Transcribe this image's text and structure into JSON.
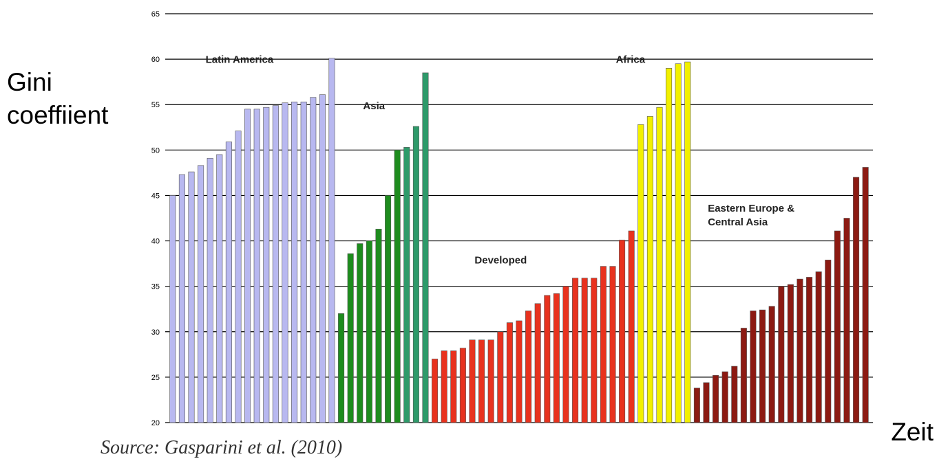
{
  "chart_data": {
    "type": "bar",
    "title": "",
    "ylabel": "Gini coeffiient",
    "ylabel_lines": [
      "Gini",
      "coeffiient"
    ],
    "xlabel": "Zeit",
    "ylim": [
      20,
      65
    ],
    "yticks": [
      20,
      25,
      30,
      35,
      40,
      45,
      50,
      55,
      60,
      65
    ],
    "grid": true,
    "source_note": "Source: Gasparini et al. (2010)",
    "series": [
      {
        "name": "Latin America",
        "color": "#b8b8f0",
        "values": [
          45.0,
          47.3,
          47.6,
          48.3,
          49.1,
          49.5,
          50.9,
          52.1,
          54.5,
          54.5,
          54.7,
          54.9,
          55.2,
          55.3,
          55.3,
          55.8,
          56.1,
          60.1
        ]
      },
      {
        "name": "Asia",
        "colors_by_bar": [
          "#1e8c1e",
          "#1e8c1e",
          "#1e8c1e",
          "#1e8c1e",
          "#1e8c1e",
          "#1e8c1e",
          "#1e8c1e",
          "#2e9a6a",
          "#2e9a6a",
          "#2e9a6a"
        ],
        "color": "#1e8c1e",
        "values": [
          32.0,
          38.6,
          39.7,
          40.0,
          41.3,
          45.0,
          50.0,
          50.3,
          52.6,
          58.5
        ]
      },
      {
        "name": "Developed",
        "color": "#e8321e",
        "values": [
          27.0,
          27.9,
          27.9,
          28.2,
          29.1,
          29.1,
          29.1,
          30.0,
          31.0,
          31.2,
          32.3,
          33.1,
          34.0,
          34.2,
          35.0,
          35.9,
          35.9,
          35.9,
          37.2,
          37.2,
          40.1,
          41.1
        ]
      },
      {
        "name": "Africa",
        "color": "#f2f000",
        "values": [
          52.8,
          53.7,
          54.7,
          59.0,
          59.5,
          59.7
        ]
      },
      {
        "name": "Eastern Europe & Central Asia",
        "label_lines": [
          "Eastern Europe &",
          "Central Asia"
        ],
        "color": "#8c1a12",
        "values": [
          23.8,
          24.4,
          25.2,
          25.6,
          26.2,
          30.4,
          32.3,
          32.4,
          32.8,
          35.0,
          35.2,
          35.8,
          36.0,
          36.6,
          37.9,
          41.1,
          42.5,
          47.0,
          48.1
        ]
      }
    ]
  }
}
